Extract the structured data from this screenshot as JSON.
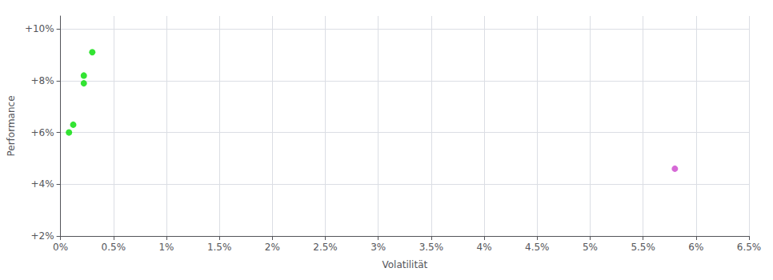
{
  "chart_data": {
    "type": "scatter",
    "xlabel": "Volatilität",
    "ylabel": "Performance",
    "xlim": [
      0.0,
      0.065
    ],
    "ylim": [
      0.02,
      0.105
    ],
    "xticks": [
      {
        "value": 0.0,
        "label": "0%"
      },
      {
        "value": 0.005,
        "label": "0.5%"
      },
      {
        "value": 0.01,
        "label": "1%"
      },
      {
        "value": 0.015,
        "label": "1.5%"
      },
      {
        "value": 0.02,
        "label": "2%"
      },
      {
        "value": 0.025,
        "label": "2.5%"
      },
      {
        "value": 0.03,
        "label": "3%"
      },
      {
        "value": 0.035,
        "label": "3.5%"
      },
      {
        "value": 0.04,
        "label": "4%"
      },
      {
        "value": 0.045,
        "label": "4.5%"
      },
      {
        "value": 0.05,
        "label": "5%"
      },
      {
        "value": 0.055,
        "label": "5.5%"
      },
      {
        "value": 0.06,
        "label": "6%"
      },
      {
        "value": 0.065,
        "label": "6.5%"
      }
    ],
    "yticks": [
      {
        "value": 0.02,
        "label": "+2%"
      },
      {
        "value": 0.04,
        "label": "+4%"
      },
      {
        "value": 0.06,
        "label": "+6%"
      },
      {
        "value": 0.08,
        "label": "+8%"
      },
      {
        "value": 0.1,
        "label": "+10%"
      }
    ],
    "grid": true,
    "series": [
      {
        "color": "#00dd00",
        "x": [
          0.003,
          0.0022,
          0.0022,
          0.0012,
          0.0008
        ],
        "values": [
          0.091,
          0.082,
          0.079,
          0.063,
          0.06
        ]
      },
      {
        "color": "#cc44cc",
        "x": [
          0.058
        ],
        "values": [
          0.046
        ]
      }
    ]
  }
}
